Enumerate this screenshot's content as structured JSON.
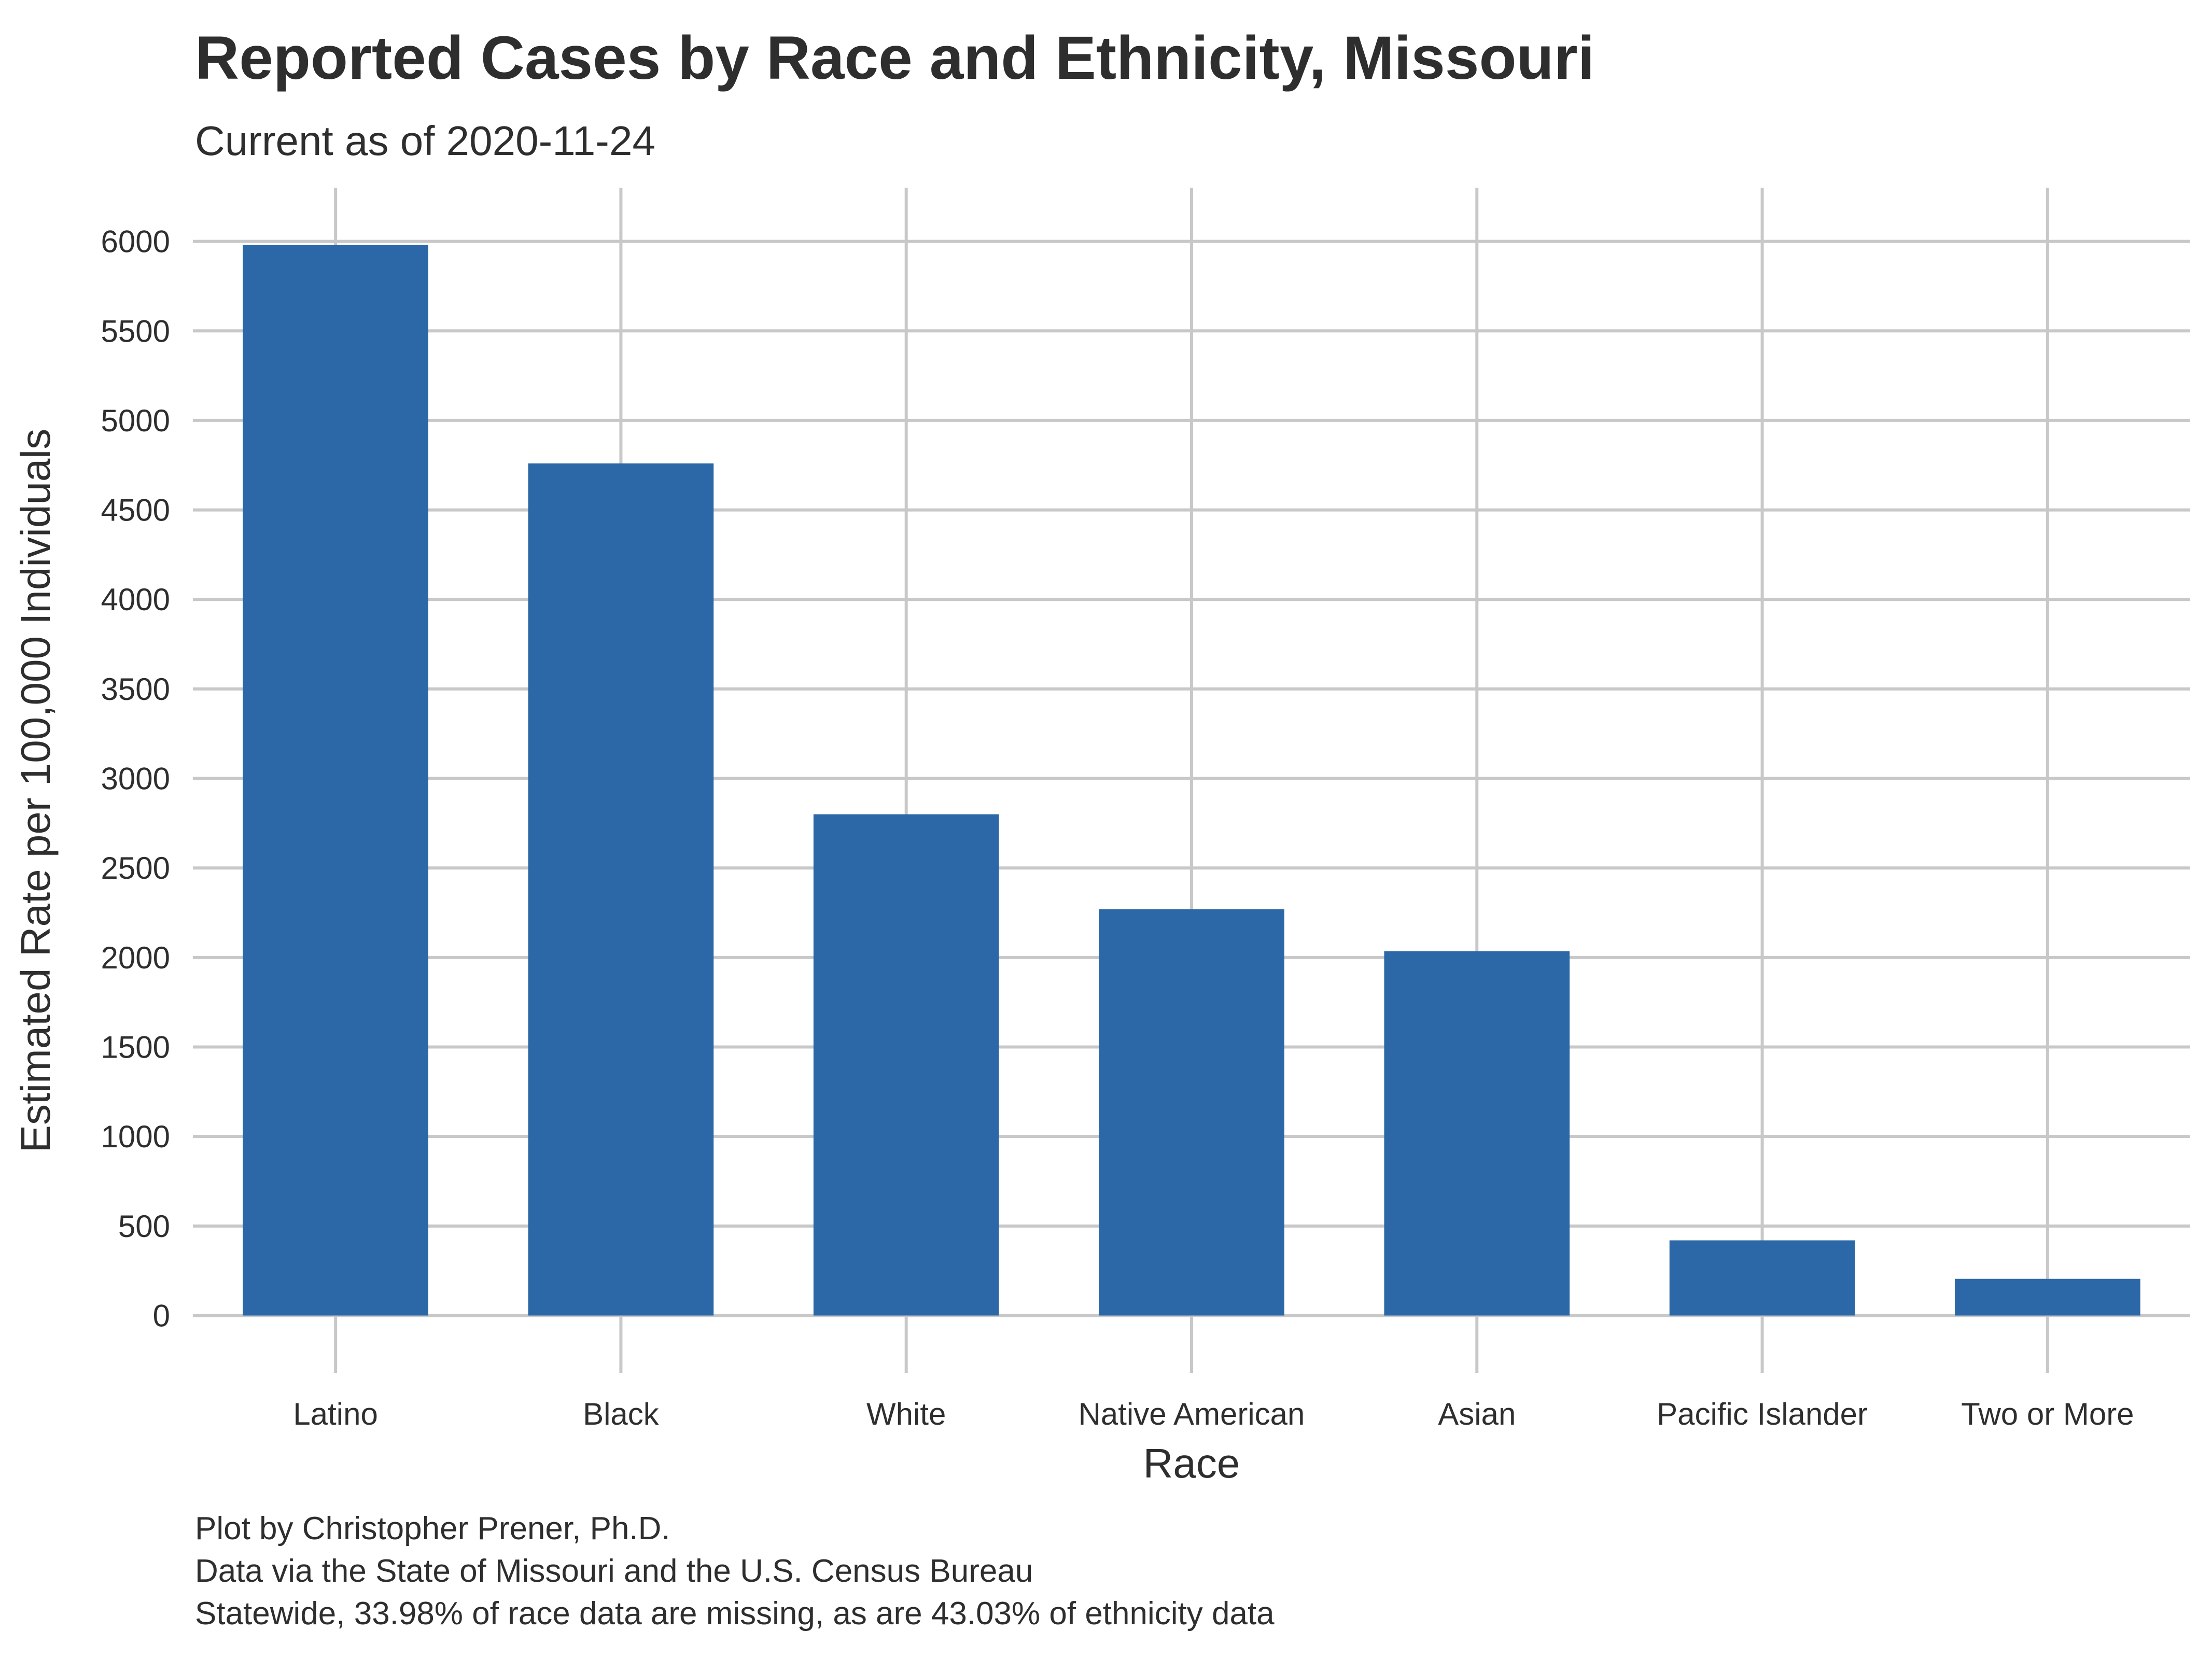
{
  "chart_data": {
    "type": "bar",
    "title": "Reported Cases by Race and Ethnicity, Missouri",
    "subtitle": "Current as of 2020-11-24",
    "xlabel": "Race",
    "ylabel": "Estimated Rate per 100,000 Individuals",
    "categories": [
      "Latino",
      "Black",
      "White",
      "Native American",
      "Asian",
      "Pacific Islander",
      "Two or More"
    ],
    "values": [
      5980,
      4760,
      2800,
      2270,
      2035,
      420,
      205
    ],
    "yticks": [
      "0",
      "500",
      "1000",
      "1500",
      "2000",
      "2500",
      "3000",
      "3500",
      "4000",
      "4500",
      "5000",
      "5500",
      "6000"
    ],
    "ylim": [
      -320,
      6300
    ],
    "grid": true,
    "legend": "none",
    "bar_color": "#2c68a7",
    "grid_color": "#c8c8c8",
    "caption": [
      "Plot by Christopher Prener, Ph.D.",
      "Data via the State of Missouri and the U.S. Census Bureau",
      "Statewide, 33.98% of race data are missing, as are 43.03% of ethnicity data"
    ]
  }
}
